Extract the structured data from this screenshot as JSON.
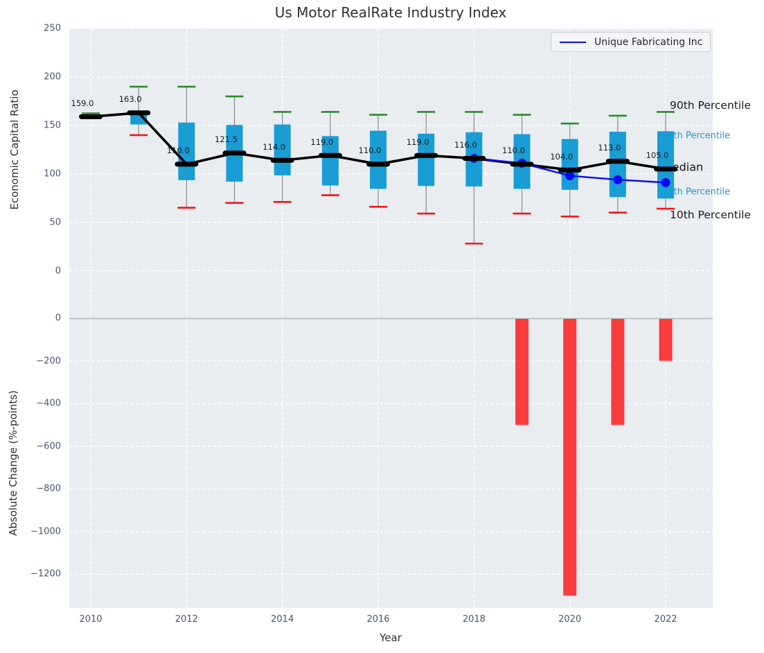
{
  "title": "Us Motor RealRate Industry Index",
  "legend": {
    "label": "Unique Fabricating Inc"
  },
  "colors": {
    "axes_background": "#e9edf1",
    "grid": "#ffffff",
    "box_fill": "#1a9cd4",
    "cap_high_green": "#2a8c2a",
    "cap_low_red": "#f41414",
    "whisker": "#8a8a8a",
    "median_black": "#000000",
    "company_blue": "#0a0af0",
    "bar_red": "#fa3c3c",
    "zero_line": "#b5b8bb",
    "tick_text": "#47566e",
    "annotation_cyan": "#1f9acc",
    "annotation_black": "#1a1a1a"
  },
  "chart_data": [
    {
      "type": "boxplot+line",
      "title": "Us Motor RealRate Industry Index",
      "ylabel": "Economic Capital Ratio",
      "ylim": [
        -50,
        250
      ],
      "yticks": [
        0,
        50,
        100,
        150,
        200,
        250
      ],
      "grid": true,
      "years": [
        2010,
        2011,
        2012,
        2013,
        2014,
        2015,
        2016,
        2017,
        2018,
        2019,
        2020,
        2021,
        2022
      ],
      "percentile_90": [
        162.5,
        190,
        190,
        180,
        164,
        164,
        161,
        164,
        164,
        161,
        152,
        160,
        164
      ],
      "percentile_75": [
        160.5,
        163,
        153,
        150.5,
        151,
        139,
        144.5,
        141.5,
        143,
        141,
        136,
        143.5,
        144
      ],
      "median": [
        159,
        163,
        110,
        121.5,
        114,
        119,
        110,
        119,
        116,
        110,
        104,
        113,
        105
      ],
      "percentile_25": [
        158,
        151,
        93.5,
        92,
        98.5,
        88,
        84.5,
        87.5,
        87,
        84.5,
        83.5,
        76,
        74.5
      ],
      "percentile_10": [
        158.5,
        140,
        65,
        70,
        71,
        78,
        66,
        59,
        28,
        59,
        56,
        60,
        64
      ],
      "median_labels": [
        "159.0",
        "163.0",
        "110.0",
        "121.5",
        "114.0",
        "119.0",
        "110.0",
        "119.0",
        "116.0",
        "110.0",
        "104.0",
        "113.0",
        "105.0"
      ],
      "series": [
        {
          "name": "Unique Fabricating Inc",
          "x": [
            2018,
            2019,
            2020,
            2021,
            2022
          ],
          "y": [
            116,
            111,
            98,
            94,
            91
          ]
        }
      ],
      "annotations": [
        {
          "key": "p90",
          "text": "90th Percentile",
          "x": 967,
          "v": 170.7,
          "color": "#1a1a1a",
          "size": 15.5
        },
        {
          "key": "p75",
          "text": "75th Percentile",
          "x": 956,
          "v": 139.2,
          "color": "#1f9acc",
          "size": 13
        },
        {
          "key": "median",
          "text": "Median",
          "x": 957,
          "v": 107.0,
          "color": "#111111",
          "size": 16
        },
        {
          "key": "p25",
          "text": "25th Percentile",
          "x": 956,
          "v": 81.2,
          "color": "#1f9acc",
          "size": 13
        },
        {
          "key": "p10",
          "text": "10th Percentile",
          "x": 967,
          "v": 57.6,
          "color": "#1a1a1a",
          "size": 15.5
        }
      ],
      "legend": {
        "label": "Unique Fabricating Inc",
        "position": "upper right"
      }
    },
    {
      "type": "bar",
      "ylabel": "Absolute Change (%-points)",
      "xlabel": "Year",
      "ylim": [
        -1360,
        0
      ],
      "yticks": [
        0,
        -200,
        -400,
        -600,
        -800,
        -1000,
        -1200
      ],
      "xticks": [
        2010,
        2012,
        2014,
        2016,
        2018,
        2020,
        2022
      ],
      "grid": true,
      "categories": [
        2019,
        2020,
        2021,
        2022
      ],
      "values": [
        -500,
        -1300,
        -500,
        -200
      ]
    }
  ]
}
